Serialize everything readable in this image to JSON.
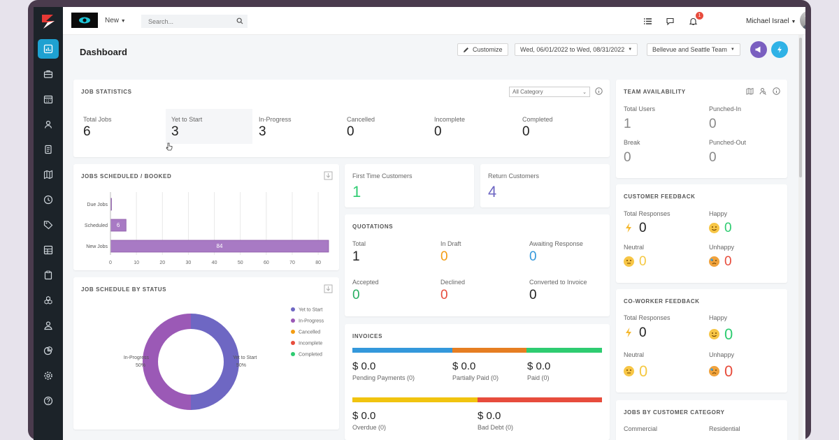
{
  "topbar": {
    "new_label": "New",
    "search_placeholder": "Search...",
    "user_name": "Michael Israel",
    "notification_count": "1"
  },
  "header": {
    "title": "Dashboard",
    "customize_label": "Customize",
    "date_range": "Wed, 06/01/2022 to Wed, 08/31/2022",
    "team": "Bellevue and Seattle Team"
  },
  "job_statistics": {
    "title": "JOB STATISTICS",
    "category_select": "All Category",
    "stats": [
      {
        "label": "Total Jobs",
        "value": "6"
      },
      {
        "label": "Yet to Start",
        "value": "3"
      },
      {
        "label": "In-Progress",
        "value": "3"
      },
      {
        "label": "Cancelled",
        "value": "0"
      },
      {
        "label": "Incomplete",
        "value": "0"
      },
      {
        "label": "Completed",
        "value": "0"
      }
    ]
  },
  "team_availability": {
    "title": "TEAM AVAILABILITY",
    "items": [
      {
        "label": "Total Users",
        "value": "1"
      },
      {
        "label": "Punched-In",
        "value": "0"
      },
      {
        "label": "Break",
        "value": "0"
      },
      {
        "label": "Punched-Out",
        "value": "0"
      }
    ]
  },
  "jobs_scheduled": {
    "title": "JOBS SCHEDULED / BOOKED"
  },
  "chart_data": [
    {
      "type": "bar",
      "orientation": "horizontal",
      "title": "JOBS SCHEDULED / BOOKED",
      "categories": [
        "Due Jobs",
        "Scheduled",
        "New Jobs"
      ],
      "values": [
        0,
        6,
        84
      ],
      "data_labels": [
        "",
        "6",
        "84"
      ],
      "xticks": [
        "0",
        "10",
        "20",
        "30",
        "40",
        "50",
        "60",
        "70",
        "80"
      ],
      "xlim": [
        0,
        84
      ],
      "grid": true,
      "color": "#a87ac4"
    },
    {
      "type": "pie",
      "title": "JOB SCHEDULE BY STATUS",
      "donut": true,
      "slices": [
        {
          "label": "Yet to Start",
          "value": 50,
          "text": "Yet to Start",
          "pct": "50%",
          "color": "#6e67c3"
        },
        {
          "label": "In-Progress",
          "value": 50,
          "text": "In-Progress",
          "pct": "50%",
          "color": "#9b59b6"
        }
      ],
      "legend": [
        {
          "label": "Yet to Start",
          "color": "#6e67c3"
        },
        {
          "label": "In-Progress",
          "color": "#9b59b6"
        },
        {
          "label": "Cancelled",
          "color": "#f39c12"
        },
        {
          "label": "Incomplete",
          "color": "#e74c3c"
        },
        {
          "label": "Completed",
          "color": "#2ecc71"
        }
      ],
      "legend_position": "top-right"
    }
  ],
  "customers": {
    "first_time": {
      "label": "First Time Customers",
      "value": "1",
      "color": "#2ecc71"
    },
    "return": {
      "label": "Return Customers",
      "value": "4",
      "color": "#6e67c3"
    }
  },
  "quotations": {
    "title": "QUOTATIONS",
    "items": [
      {
        "label": "Total",
        "value": "1",
        "color": "#222222"
      },
      {
        "label": "In Draft",
        "value": "0",
        "color": "#f39c12"
      },
      {
        "label": "Awaiting Response",
        "value": "0",
        "color": "#3498db"
      },
      {
        "label": "Accepted",
        "value": "0",
        "color": "#27ae60"
      },
      {
        "label": "Declined",
        "value": "0",
        "color": "#e74c3c"
      },
      {
        "label": "Converted to Invoice",
        "value": "0",
        "color": "#222222"
      }
    ]
  },
  "invoices": {
    "title": "INVOICES",
    "items": [
      {
        "amount": "$ 0.0",
        "label": "Pending Payments (0)",
        "color": "#3498db"
      },
      {
        "amount": "$ 0.0",
        "label": "Partially Paid (0)",
        "color": "#e67e22"
      },
      {
        "amount": "$ 0.0",
        "label": "Paid (0)",
        "color": "#2ecc71"
      },
      {
        "amount": "$ 0.0",
        "label": "Overdue (0)",
        "color": "#f1c40f"
      },
      {
        "amount": "$ 0.0",
        "label": "Bad Debt (0)",
        "color": "#e74c3c"
      }
    ]
  },
  "customer_feedback": {
    "title": "CUSTOMER FEEDBACK",
    "items": [
      {
        "label": "Total Responses",
        "value": "0"
      },
      {
        "label": "Happy",
        "value": "0"
      },
      {
        "label": "Neutral",
        "value": "0"
      },
      {
        "label": "Unhappy",
        "value": "0"
      }
    ]
  },
  "coworker_feedback": {
    "title": "CO-WORKER FEEDBACK",
    "items": [
      {
        "label": "Total Responses",
        "value": "0"
      },
      {
        "label": "Happy",
        "value": "0"
      },
      {
        "label": "Neutral",
        "value": "0"
      },
      {
        "label": "Unhappy",
        "value": "0"
      }
    ]
  },
  "jobs_by_category": {
    "title": "JOBS BY CUSTOMER CATEGORY",
    "columns": [
      "Commercial",
      "Residential"
    ]
  },
  "sidebar": {
    "items": [
      "dashboard-icon",
      "briefcase-icon",
      "calendar-icon",
      "contacts-icon",
      "document-icon",
      "map-icon",
      "clock-icon",
      "tag-icon",
      "table-icon",
      "clipboard-icon",
      "boxes-icon",
      "user-icon",
      "chart-pie-icon",
      "gear-icon",
      "help-icon"
    ]
  }
}
